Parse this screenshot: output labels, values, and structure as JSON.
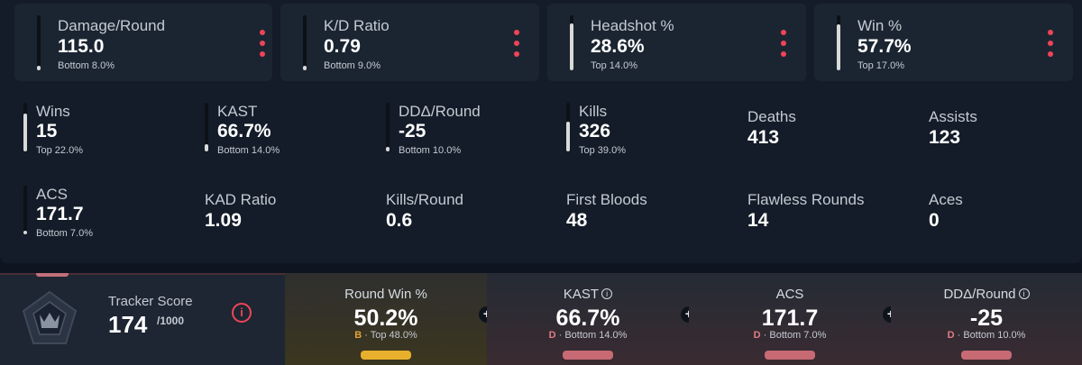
{
  "top_cards": [
    {
      "label": "Damage/Round",
      "value": "115.0",
      "sub": "Bottom 8.0%",
      "bar_level": 0.08
    },
    {
      "label": "K/D Ratio",
      "value": "0.79",
      "sub": "Bottom 9.0%",
      "bar_level": 0.09
    },
    {
      "label": "Headshot %",
      "value": "28.6%",
      "sub": "Top 14.0%",
      "bar_level": 0.86
    },
    {
      "label": "Win %",
      "value": "57.7%",
      "sub": "Top 17.0%",
      "bar_level": 0.83
    }
  ],
  "stats": [
    {
      "label": "Wins",
      "value": "15",
      "sub": "Top 22.0%",
      "bar_level": 0.78
    },
    {
      "label": "KAST",
      "value": "66.7%",
      "sub": "Bottom 14.0%",
      "bar_level": 0.14
    },
    {
      "label": "DDΔ/Round",
      "value": "-25",
      "sub": "Bottom 10.0%",
      "bar_level": 0.1
    },
    {
      "label": "Kills",
      "value": "326",
      "sub": "Top 39.0%",
      "bar_level": 0.61
    },
    {
      "label": "Deaths",
      "value": "413"
    },
    {
      "label": "Assists",
      "value": "123"
    },
    {
      "label": "ACS",
      "value": "171.7",
      "sub": "Bottom 7.0%",
      "bar_level": 0.07
    },
    {
      "label": "KAD Ratio",
      "value": "1.09"
    },
    {
      "label": "Kills/Round",
      "value": "0.6"
    },
    {
      "label": "First Bloods",
      "value": "48"
    },
    {
      "label": "Flawless Rounds",
      "value": "14"
    },
    {
      "label": "Aces",
      "value": "0"
    }
  ],
  "tracker": {
    "label": "Tracker Score",
    "value": "174",
    "max": "/1000",
    "info_glyph": "i",
    "plus_glyph": "+",
    "cells": [
      {
        "label": "Round Win %",
        "value": "50.2%",
        "grade": "B",
        "rank": "· Top 48.0%",
        "grade_color": "#e3a33a",
        "pill_color": "#e8b02c",
        "info": false
      },
      {
        "label": "KAST",
        "value": "66.7%",
        "grade": "D",
        "rank": "· Bottom 14.0%",
        "grade_color": "#e27b85",
        "pill_color": "#c76a74",
        "info": true
      },
      {
        "label": "ACS",
        "value": "171.7",
        "grade": "D",
        "rank": "· Bottom 7.0%",
        "grade_color": "#e27b85",
        "pill_color": "#c76a74",
        "info": false
      },
      {
        "label": "DDΔ/Round",
        "value": "-25",
        "grade": "D",
        "rank": "· Bottom 10.0%",
        "grade_color": "#e27b85",
        "pill_color": "#c76a74",
        "info": true
      }
    ]
  },
  "colors": {
    "accent_red": "#ef4458",
    "panel": "#131c28",
    "card": "#1b2531"
  }
}
